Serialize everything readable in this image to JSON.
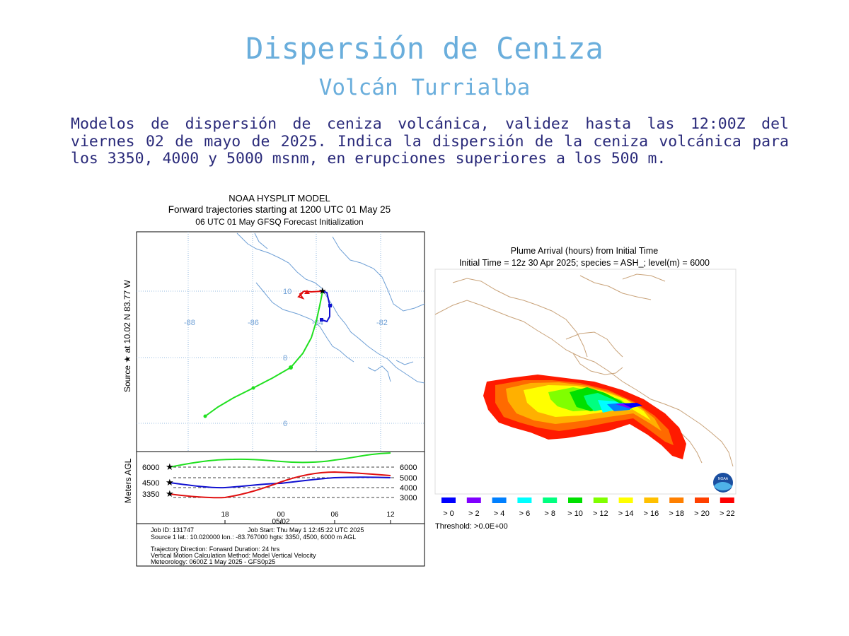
{
  "header": {
    "title": "Dispersión de Ceniza",
    "subtitle": "Volcán Turrialba",
    "description": "Modelos de dispersión de ceniza volcánica, validez hasta las 12:00Z del viernes 02 de mayo de 2025. Indica la dispersión de la ceniza volcánica para los 3350, 4000 y 5000 msnm, en erupciones superiores a los 500 m."
  },
  "trajectory_panel": {
    "title1": "NOAA HYSPLIT MODEL",
    "title2": "Forward trajectories starting at 1200 UTC 01 May 25",
    "title3": "06 UTC 01 May    GFSQ  Forecast Initialization",
    "source_label": "Source ★  at   10.02 N   83.77 W",
    "map_lon_labels": [
      "-88",
      "-86",
      "-84",
      "-82"
    ],
    "map_lat_labels": [
      "10",
      "8",
      "6"
    ],
    "height_axis_label": "Meters AGL",
    "left_levels": [
      "6000",
      "4500",
      "3350"
    ],
    "right_levels": [
      "6000",
      "5000",
      "4000",
      "3000"
    ],
    "time_ticks": [
      "18",
      "00",
      "06",
      "12"
    ],
    "date_label": "05/02",
    "info_job_id": "Job ID: 131747",
    "info_job_start": "Job Start: Thu May  1 12:45:22 UTC 2025",
    "info_source": "Source 1 lat.: 10.020000  lon.: -83.767000  hgts: 3350, 4500, 6000 m AGL",
    "info_direction": "Trajectory Direction: Forward      Duration: 24 hrs",
    "info_vertical": "Vertical Motion Calculation Method:      Model Vertical Velocity",
    "info_meteo": "Meteorology: 0600Z 1 May 2025 - GFS0p25",
    "series_colors": {
      "3350": "#e01010",
      "4500": "#1010d0",
      "6000": "#20e020"
    }
  },
  "plume_panel": {
    "title1": "Plume Arrival (hours) from Initial Time",
    "title2": "Initial Time = 12z 30 Apr 2025;  species = ASH_;  level(m) =  6000",
    "legend": [
      {
        "label": "> 0",
        "color": "#0000ff"
      },
      {
        "label": "> 2",
        "color": "#8000ff"
      },
      {
        "label": "> 4",
        "color": "#0080ff"
      },
      {
        "label": "> 6",
        "color": "#00ffff"
      },
      {
        "label": "> 8",
        "color": "#00ff80"
      },
      {
        "label": "> 10",
        "color": "#00e000"
      },
      {
        "label": "> 12",
        "color": "#80ff00"
      },
      {
        "label": "> 14",
        "color": "#ffff00"
      },
      {
        "label": "> 16",
        "color": "#ffc000"
      },
      {
        "label": "> 18",
        "color": "#ff8000"
      },
      {
        "label": "> 20",
        "color": "#ff4000"
      },
      {
        "label": "> 22",
        "color": "#ff0000"
      }
    ],
    "threshold": "Threshold: >0.0E+00",
    "logo_text": "NOAA"
  }
}
